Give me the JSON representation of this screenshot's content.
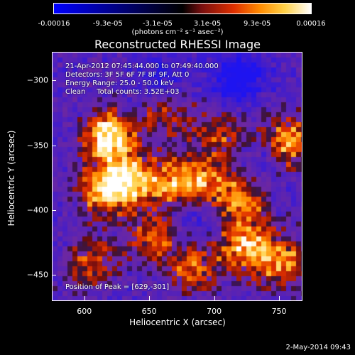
{
  "colorbar": {
    "tick_labels": [
      "-0.00016",
      "-9.3e-05",
      "-3.1e-05",
      "3.1e-05",
      "9.3e-05",
      "0.00016"
    ],
    "tick_values": [
      -0.00016,
      -9.3e-05,
      -3.1e-05,
      3.1e-05,
      9.3e-05,
      0.00016
    ],
    "range": [
      -0.00016,
      0.00016
    ],
    "unit_label": "(photons cm⁻² s⁻¹ asec⁻²)",
    "colors": [
      "#0000ff",
      "#000000",
      "#7a1010",
      "#e03000",
      "#ff8a00",
      "#ffd24a",
      "#ffffff"
    ]
  },
  "chart_data": {
    "type": "heatmap",
    "title": "Reconstructed RHESSI Image",
    "xlabel": "Heliocentric X (arcsec)",
    "ylabel": "Heliocentric Y (arcsec)",
    "xlim": [
      575,
      768
    ],
    "ylim": [
      -470,
      -278
    ],
    "x_ticks": [
      600,
      650,
      700,
      750
    ],
    "y_ticks": [
      -300,
      -350,
      -400,
      -450
    ],
    "peak": [
      629,
      -301
    ],
    "sources": [
      {
        "x": 619,
        "y": -343,
        "strength": 0.95
      },
      {
        "x": 633,
        "y": -378,
        "strength": 0.75
      },
      {
        "x": 612,
        "y": -386,
        "strength": 0.6
      },
      {
        "x": 667,
        "y": -378,
        "strength": 0.6
      },
      {
        "x": 693,
        "y": -381,
        "strength": 0.55
      },
      {
        "x": 722,
        "y": -393,
        "strength": 0.6
      },
      {
        "x": 756,
        "y": -348,
        "strength": 0.75
      },
      {
        "x": 724,
        "y": -428,
        "strength": 0.7
      },
      {
        "x": 753,
        "y": -441,
        "strength": 0.65
      },
      {
        "x": 685,
        "y": -446,
        "strength": 0.55
      },
      {
        "x": 652,
        "y": -423,
        "strength": 0.55
      },
      {
        "x": 605,
        "y": -441,
        "strength": 0.5
      },
      {
        "x": 663,
        "y": -327,
        "strength": 0.45
      },
      {
        "x": 706,
        "y": -343,
        "strength": 0.45
      }
    ],
    "negative_regions": [
      {
        "x": 720,
        "y": -298,
        "strength": 0.85
      },
      {
        "x": 657,
        "y": -298,
        "strength": 0.45
      },
      {
        "x": 688,
        "y": -402,
        "strength": 0.4
      },
      {
        "x": 740,
        "y": -360,
        "strength": 0.35
      }
    ]
  },
  "info": {
    "time_range": "21-Apr-2012 07:45:44.000 to 07:49:40.000",
    "detectors": "Detectors: 3F 5F 6F 7F 8F 9F, Att 0",
    "energy": "Energy Range: 25.0 - 50.0 keV",
    "method": "Clean     Total counts: 3.52E+03",
    "peak_text": "Position of Peak = [629,-301]"
  },
  "footer": {
    "date": "2-May-2014 09:43"
  }
}
